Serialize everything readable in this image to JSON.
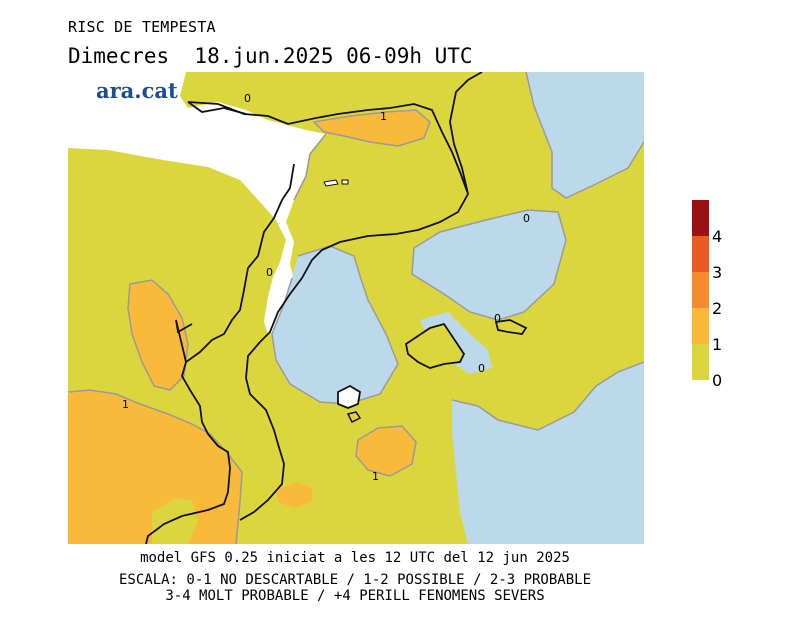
{
  "header": {
    "title": "RISC DE TEMPESTA",
    "subtitle": "Dimecres  18.jun.2025 06-09h UTC"
  },
  "logo": "ara.cat",
  "contour_labels": [
    "0",
    "1",
    "0",
    "0",
    "0",
    "0",
    "1",
    "1"
  ],
  "colors": {
    "level0": "#dcd63e",
    "level1": "#f9b93a",
    "level2": "#f78a2e",
    "level3": "#ea5b22",
    "level4": "#9b1014",
    "sea": "#bcd9ec",
    "outside": "#ffffff",
    "logo": "#1d4e8f"
  },
  "scale": {
    "labels": [
      "4",
      "3",
      "2",
      "1",
      "0"
    ]
  },
  "footer": {
    "model": "model GFS 0.25 iniciat a les 12 UTC del 12 jun 2025",
    "legend1": "ESCALA: 0-1 NO DESCARTABLE / 1-2 POSSIBLE / 2-3 PROBABLE",
    "legend2": "3-4 MOLT PROBABLE / +4 PERILL FENOMENS SEVERS"
  }
}
